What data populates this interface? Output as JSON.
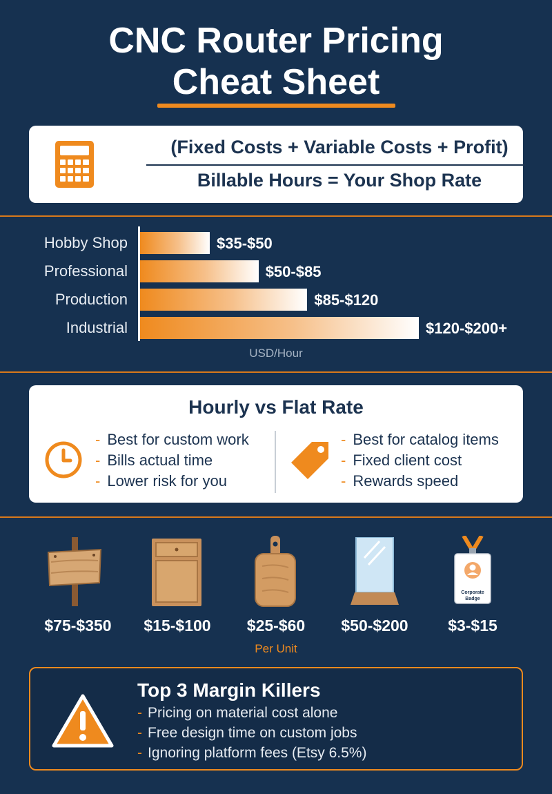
{
  "title": {
    "line1": "CNC Router Pricing",
    "line2": "Cheat Sheet"
  },
  "formula": {
    "numerator": "(Fixed Costs + Variable Costs + Profit)",
    "denominator": "Billable Hours = Your Shop Rate",
    "icon": "calculator-icon"
  },
  "chart_data": {
    "type": "bar",
    "orientation": "horizontal",
    "categories": [
      "Hobby Shop",
      "Professional",
      "Production",
      "Industrial"
    ],
    "range_labels": [
      "$35-$50",
      "$50-$85",
      "$85-$120",
      "$120-$200+"
    ],
    "values": [
      50,
      85,
      120,
      200
    ],
    "xlabel": "USD/Hour",
    "xlim": [
      0,
      200
    ]
  },
  "comparison": {
    "title": "Hourly vs Flat Rate",
    "hourly": {
      "icon": "clock-icon",
      "points": [
        "Best for custom work",
        "Bills actual time",
        "Lower risk for you"
      ]
    },
    "flat": {
      "icon": "price-tag-icon",
      "points": [
        "Best for catalog items",
        "Fixed client cost",
        "Rewards speed"
      ]
    },
    "bullet": "-"
  },
  "products": {
    "items": [
      {
        "icon": "wooden-sign-icon",
        "price": "$75-$350"
      },
      {
        "icon": "cabinet-door-icon",
        "price": "$15-$100"
      },
      {
        "icon": "cutting-board-icon",
        "price": "$25-$60"
      },
      {
        "icon": "acrylic-award-icon",
        "price": "$50-$200"
      },
      {
        "icon": "corporate-badge-icon",
        "price": "$3-$15",
        "badge_text": "Corporate Badge"
      }
    ],
    "unit_label": "Per Unit"
  },
  "margin_killers": {
    "title": "Top 3 Margin Killers",
    "icon": "warning-icon",
    "items": [
      "Pricing on material cost alone",
      "Free design time on custom jobs",
      "Ignoring platform fees (Etsy 6.5%)"
    ]
  },
  "colors": {
    "background": "#163150",
    "accent": "#ef8a1e",
    "card": "#ffffff",
    "text_dark": "#1c3350"
  }
}
